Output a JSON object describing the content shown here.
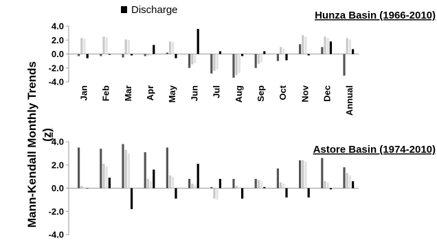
{
  "figure": {
    "ylabel_line1": "Mann-Kendall Monthly Trends",
    "ylabel_line2": "(z)",
    "legend_label": "Discharge"
  },
  "chart_data": [
    {
      "type": "bar",
      "title": "Hunza Basin (1966-2010)",
      "categories": [
        "Jan",
        "Feb",
        "Mar",
        "Apr",
        "May",
        "Jun",
        "Jul",
        "Aug",
        "Sep",
        "Oct",
        "Nov",
        "Dec",
        "Annual"
      ],
      "ylim": [
        -4.0,
        4.0
      ],
      "yticks": [
        "4.0",
        "2.0",
        "0.0",
        "-2.0",
        "-4.0"
      ],
      "series": [
        {
          "color": "#555555",
          "values": [
            -0.3,
            -0.3,
            -0.5,
            -0.3,
            0.2,
            -2.0,
            -2.8,
            -3.4,
            -2.0,
            -1.0,
            1.4,
            1.0,
            -3.1
          ]
        },
        {
          "color": "#c8c8c8",
          "values": [
            2.3,
            2.5,
            2.1,
            -0.2,
            1.8,
            -1.5,
            -2.4,
            -3.0,
            -1.4,
            1.0,
            2.7,
            2.5,
            2.3
          ]
        },
        {
          "color": "#e3e3e3",
          "values": [
            2.2,
            2.4,
            2.0,
            -0.2,
            1.7,
            -1.3,
            -2.2,
            -2.7,
            -1.2,
            0.8,
            2.5,
            2.3,
            2.1
          ]
        },
        {
          "name": "Discharge",
          "color": "#000000",
          "values": [
            -0.6,
            -0.1,
            -0.2,
            1.3,
            -0.6,
            3.6,
            0.4,
            -0.3,
            0.4,
            -0.9,
            -0.2,
            1.8,
            0.7
          ]
        }
      ]
    },
    {
      "type": "bar",
      "title": "Astore Basin (1974-2010)",
      "categories": [
        "Jan",
        "Feb",
        "Mar",
        "Apr",
        "May",
        "Jun",
        "Jul",
        "Aug",
        "Sep",
        "Oct",
        "Nov",
        "Dec",
        "Annual"
      ],
      "ylim": [
        -4.0,
        4.0
      ],
      "yticks": [
        "4.0",
        "2.0",
        "0.0",
        "-2.0",
        "-4.0"
      ],
      "series": [
        {
          "color": "#555555",
          "values": [
            3.5,
            3.4,
            3.8,
            3.1,
            3.5,
            0.8,
            0.1,
            0.8,
            0.8,
            1.7,
            2.4,
            2.6,
            1.8
          ]
        },
        {
          "color": "#c8c8c8",
          "values": [
            0.2,
            2.1,
            3.3,
            0.8,
            1.1,
            0.4,
            -0.9,
            0.2,
            0.7,
            0.5,
            2.4,
            0.6,
            1.3
          ]
        },
        {
          "color": "#e3e3e3",
          "values": [
            0.1,
            1.9,
            3.0,
            0.6,
            1.0,
            0.3,
            -1.0,
            0.1,
            0.6,
            0.4,
            2.3,
            0.5,
            1.1
          ]
        },
        {
          "name": "Discharge",
          "color": "#000000",
          "values": [
            0.0,
            0.9,
            -1.8,
            1.6,
            -0.9,
            2.1,
            0.8,
            -0.9,
            0.1,
            -0.8,
            -0.8,
            -0.1,
            0.6
          ]
        }
      ]
    }
  ]
}
